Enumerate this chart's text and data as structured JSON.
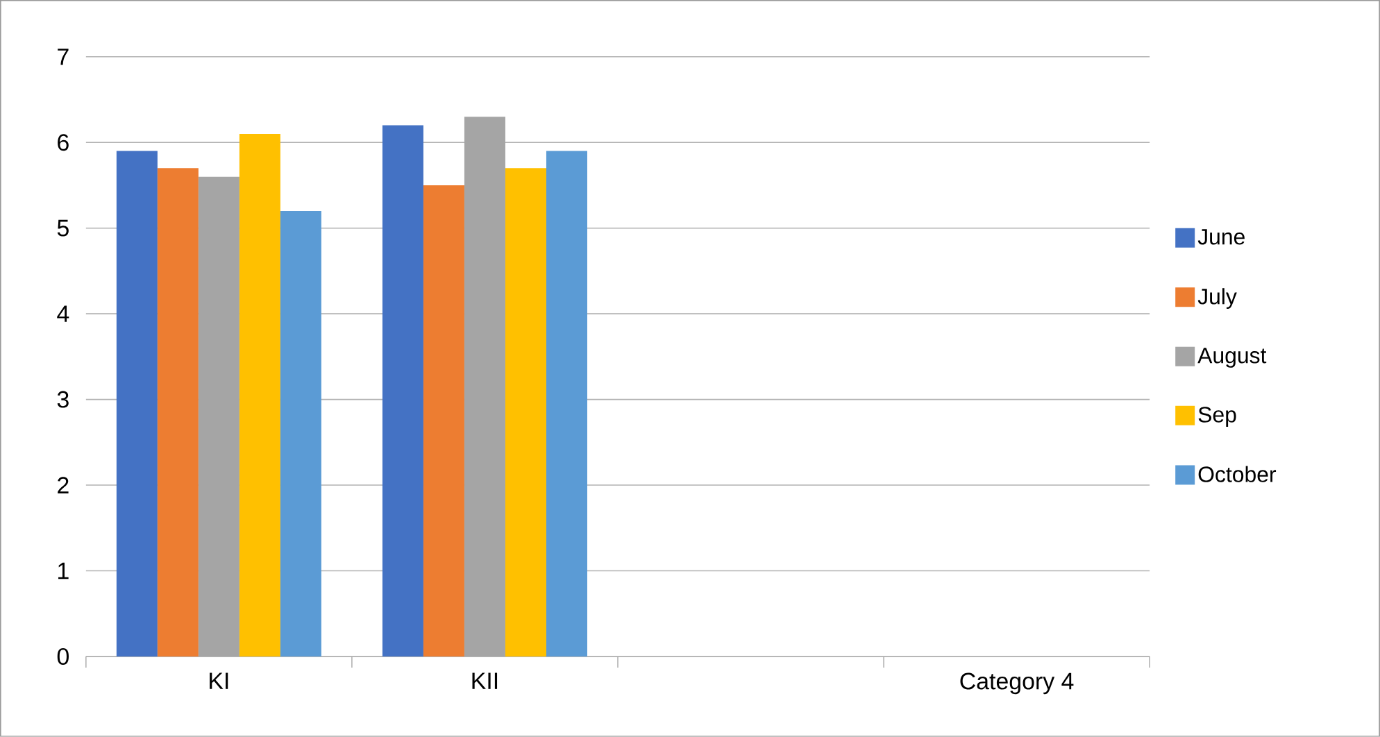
{
  "chart_data": {
    "type": "bar",
    "categories": [
      "KI",
      "KII",
      null,
      "Category 4"
    ],
    "series": [
      {
        "name": "June",
        "color": "#4472c4",
        "values": [
          5.9,
          6.2,
          null,
          null
        ]
      },
      {
        "name": "July",
        "color": "#ed7d31",
        "values": [
          5.7,
          5.5,
          null,
          null
        ]
      },
      {
        "name": "August",
        "color": "#a5a5a5",
        "values": [
          5.6,
          6.3,
          null,
          null
        ]
      },
      {
        "name": "Sep",
        "color": "#ffc000",
        "values": [
          6.1,
          5.7,
          null,
          null
        ]
      },
      {
        "name": "October",
        "color": "#5b9bd5",
        "values": [
          5.2,
          5.9,
          null,
          null
        ]
      }
    ],
    "ylim": [
      0,
      7
    ],
    "yticks": [
      0,
      1,
      2,
      3,
      4,
      5,
      6,
      7
    ],
    "grid": "y",
    "legend": "right"
  }
}
